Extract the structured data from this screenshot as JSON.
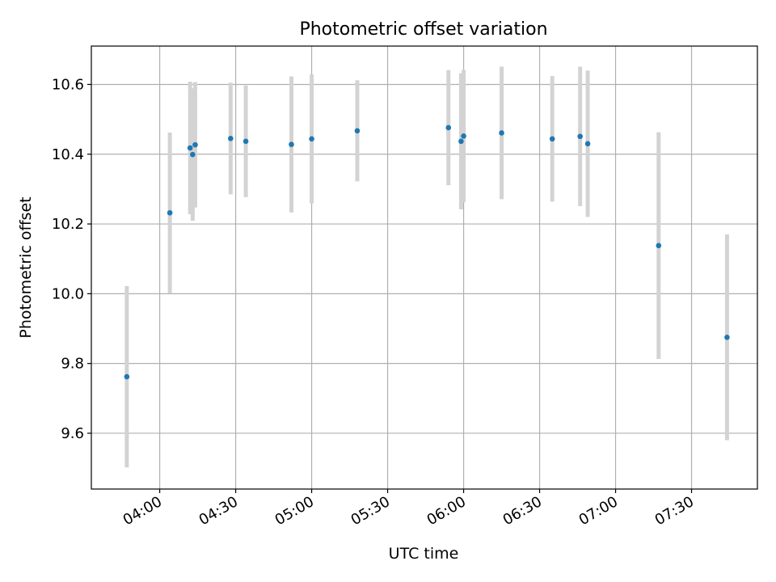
{
  "chart_data": {
    "type": "scatter",
    "title": "Photometric offset variation",
    "xlabel": "UTC time",
    "ylabel": "Photometric offset",
    "xlim": [
      "03:33",
      "07:56"
    ],
    "ylim": [
      9.44,
      10.71
    ],
    "x_ticks": [
      "04:00",
      "04:30",
      "05:00",
      "05:30",
      "06:00",
      "06:30",
      "07:00",
      "07:30"
    ],
    "y_ticks": [
      9.6,
      9.8,
      10.0,
      10.2,
      10.4,
      10.6
    ],
    "y_tick_labels": [
      "9.6",
      "9.8",
      "10.0",
      "10.2",
      "10.4",
      "10.6"
    ],
    "grid": true,
    "colors": {
      "marker": "#1f77b4",
      "errorbar": "#d3d3d3",
      "grid": "#b0b0b0"
    },
    "points": [
      {
        "t": "03:47",
        "y": 9.762,
        "err": 0.26
      },
      {
        "t": "04:04",
        "y": 10.232,
        "err": 0.23
      },
      {
        "t": "04:12",
        "y": 10.418,
        "err": 0.19
      },
      {
        "t": "04:13",
        "y": 10.399,
        "err": 0.19
      },
      {
        "t": "04:14",
        "y": 10.427,
        "err": 0.18
      },
      {
        "t": "04:28",
        "y": 10.445,
        "err": 0.16
      },
      {
        "t": "04:34",
        "y": 10.437,
        "err": 0.16
      },
      {
        "t": "04:52",
        "y": 10.428,
        "err": 0.195
      },
      {
        "t": "05:00",
        "y": 10.444,
        "err": 0.185
      },
      {
        "t": "05:18",
        "y": 10.467,
        "err": 0.145
      },
      {
        "t": "05:54",
        "y": 10.476,
        "err": 0.165
      },
      {
        "t": "05:59",
        "y": 10.437,
        "err": 0.195
      },
      {
        "t": "06:00",
        "y": 10.452,
        "err": 0.19
      },
      {
        "t": "06:15",
        "y": 10.461,
        "err": 0.19
      },
      {
        "t": "06:35",
        "y": 10.444,
        "err": 0.18
      },
      {
        "t": "06:46",
        "y": 10.451,
        "err": 0.2
      },
      {
        "t": "06:49",
        "y": 10.43,
        "err": 0.21
      },
      {
        "t": "07:17",
        "y": 10.138,
        "err": 0.325
      },
      {
        "t": "07:44",
        "y": 9.875,
        "err": 0.295
      }
    ]
  }
}
